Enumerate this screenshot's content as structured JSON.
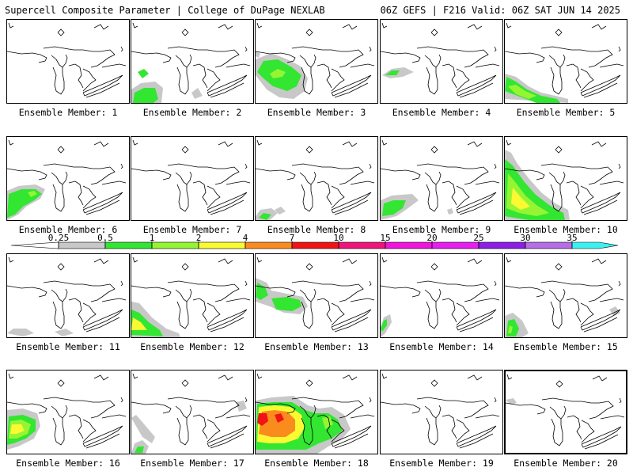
{
  "header": {
    "left_title": "Supercell Composite Parameter | College of DuPage NEXLAB",
    "right_title": "06Z GEFS | F216 Valid: 06Z SAT JUN 14 2025"
  },
  "colorbar": {
    "ticks": [
      "0.25",
      "0.5",
      "1",
      "2",
      "4",
      "7",
      "10",
      "15",
      "20",
      "25",
      "30",
      "35"
    ],
    "colors": [
      "#c8c8c8",
      "#32e632",
      "#96f532",
      "#fafa32",
      "#fa8c1e",
      "#f01414",
      "#f0147c",
      "#f014dc",
      "#e61ef0",
      "#8c1ee6",
      "#b46ee6",
      "#3cf0f0"
    ]
  },
  "members": [
    {
      "label": "Ensemble Member: 1"
    },
    {
      "label": "Ensemble Member: 2"
    },
    {
      "label": "Ensemble Member: 3"
    },
    {
      "label": "Ensemble Member: 4"
    },
    {
      "label": "Ensemble Member: 5"
    },
    {
      "label": "Ensemble Member: 6"
    },
    {
      "label": "Ensemble Member: 7"
    },
    {
      "label": "Ensemble Member: 8"
    },
    {
      "label": "Ensemble Member: 9"
    },
    {
      "label": "Ensemble Member: 10"
    },
    {
      "label": "Ensemble Member: 11"
    },
    {
      "label": "Ensemble Member: 12"
    },
    {
      "label": "Ensemble Member: 13"
    },
    {
      "label": "Ensemble Member: 14"
    },
    {
      "label": "Ensemble Member: 15"
    },
    {
      "label": "Ensemble Member: 16"
    },
    {
      "label": "Ensemble Member: 17"
    },
    {
      "label": "Ensemble Member: 18"
    },
    {
      "label": "Ensemble Member: 19"
    },
    {
      "label": "Ensemble Member: 20"
    }
  ]
}
